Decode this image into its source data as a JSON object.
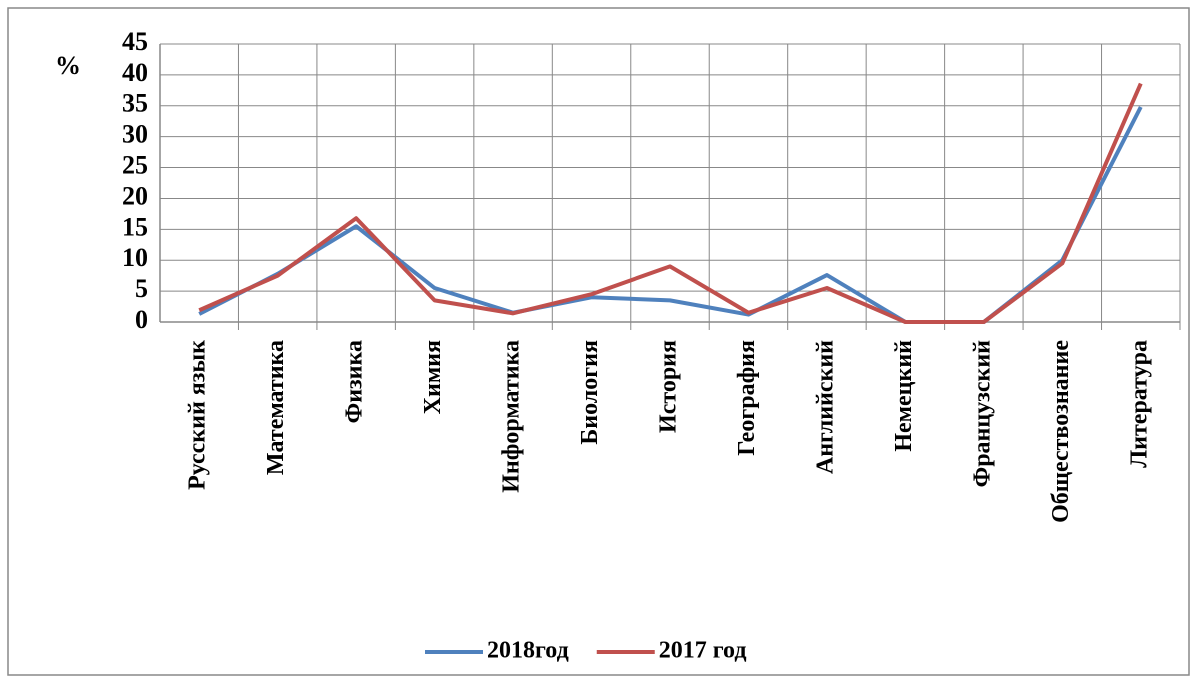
{
  "chart_data": {
    "type": "line",
    "y_label": "%",
    "categories": [
      "Русский язык",
      "Математика",
      "Физика",
      "Химия",
      "Информатика",
      "Биология",
      "История",
      "География",
      "Английский",
      "Немецкий",
      "Французский",
      "Обществознание",
      "Литература"
    ],
    "series": [
      {
        "name": "2018год",
        "color": "#4f81bd",
        "values": [
          1.3,
          7.8,
          15.5,
          5.5,
          1.5,
          4,
          3.5,
          1.2,
          7.6,
          0,
          0,
          10,
          34.8
        ]
      },
      {
        "name": "2017 год",
        "color": "#c0504d",
        "values": [
          1.9,
          7.5,
          16.8,
          3.5,
          1.4,
          4.5,
          9,
          1.5,
          5.5,
          0,
          0,
          9.5,
          38.6
        ]
      }
    ],
    "ylim": [
      0,
      45
    ],
    "yticks": [
      0,
      5,
      10,
      15,
      20,
      25,
      30,
      35,
      40,
      45
    ],
    "grid": true,
    "legend": "bottom"
  }
}
